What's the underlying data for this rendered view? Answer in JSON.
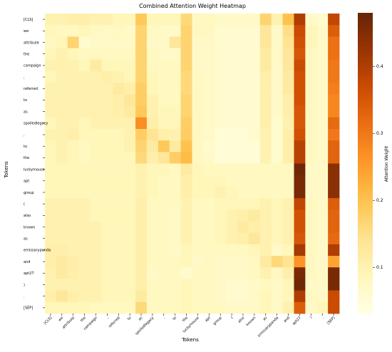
{
  "chart_data": {
    "type": "heatmap",
    "title": "Combined Attention Weight Heatmap",
    "xlabel": "Tokens",
    "ylabel": "Tokens",
    "colorbar_label": "Attention Weight",
    "colormap": "YlOrBr",
    "vmin": 0.03,
    "vmax": 0.48,
    "colorbar_ticks": [
      0.1,
      0.2,
      0.3,
      0.4
    ],
    "colorbar_tick_labels": [
      "0.1",
      "0.2",
      "0.3",
      "0.4"
    ],
    "tokens": [
      "[CLS]",
      "we",
      "attribute",
      "the",
      "campaign",
      ",",
      "referred",
      "to",
      "as",
      "spoiledlegacy",
      ",",
      "to",
      "the",
      "luckymouse",
      "apt",
      "group",
      "(",
      "also",
      "known",
      "as",
      "emissarypanda",
      "and",
      "apt27",
      ")",
      ".",
      "[SEP]"
    ],
    "values": [
      [
        0.1,
        0.1,
        0.11,
        0.11,
        0.1,
        0.1,
        0.09,
        0.09,
        0.19,
        0.09,
        0.09,
        0.09,
        0.16,
        0.08,
        0.08,
        0.07,
        0.07,
        0.07,
        0.07,
        0.17,
        0.1,
        0.2,
        0.4,
        0.07,
        0.06,
        0.38
      ],
      [
        0.09,
        0.08,
        0.08,
        0.09,
        0.08,
        0.07,
        0.08,
        0.07,
        0.17,
        0.08,
        0.07,
        0.07,
        0.17,
        0.08,
        0.08,
        0.06,
        0.06,
        0.06,
        0.06,
        0.13,
        0.07,
        0.15,
        0.37,
        0.09,
        0.07,
        0.34
      ],
      [
        0.08,
        0.09,
        0.17,
        0.06,
        0.07,
        0.07,
        0.07,
        0.07,
        0.17,
        0.07,
        0.07,
        0.13,
        0.17,
        0.07,
        0.07,
        0.06,
        0.06,
        0.06,
        0.06,
        0.13,
        0.07,
        0.14,
        0.36,
        0.09,
        0.07,
        0.31
      ],
      [
        0.09,
        0.1,
        0.09,
        0.08,
        0.08,
        0.08,
        0.08,
        0.08,
        0.17,
        0.08,
        0.07,
        0.07,
        0.17,
        0.07,
        0.07,
        0.06,
        0.06,
        0.06,
        0.06,
        0.12,
        0.07,
        0.13,
        0.35,
        0.08,
        0.07,
        0.31
      ],
      [
        0.1,
        0.1,
        0.1,
        0.09,
        0.12,
        0.09,
        0.09,
        0.09,
        0.17,
        0.08,
        0.08,
        0.08,
        0.17,
        0.07,
        0.07,
        0.06,
        0.06,
        0.06,
        0.06,
        0.12,
        0.07,
        0.13,
        0.37,
        0.08,
        0.07,
        0.3
      ],
      [
        0.09,
        0.1,
        0.1,
        0.1,
        0.1,
        0.11,
        0.1,
        0.09,
        0.17,
        0.09,
        0.08,
        0.08,
        0.16,
        0.08,
        0.07,
        0.06,
        0.06,
        0.06,
        0.06,
        0.11,
        0.07,
        0.12,
        0.36,
        0.08,
        0.07,
        0.3
      ],
      [
        0.1,
        0.1,
        0.1,
        0.1,
        0.1,
        0.1,
        0.12,
        0.11,
        0.18,
        0.09,
        0.08,
        0.08,
        0.16,
        0.08,
        0.07,
        0.06,
        0.06,
        0.06,
        0.06,
        0.11,
        0.07,
        0.12,
        0.36,
        0.08,
        0.07,
        0.29
      ],
      [
        0.1,
        0.1,
        0.1,
        0.1,
        0.1,
        0.1,
        0.11,
        0.13,
        0.18,
        0.1,
        0.08,
        0.08,
        0.17,
        0.08,
        0.07,
        0.06,
        0.06,
        0.06,
        0.06,
        0.11,
        0.07,
        0.11,
        0.36,
        0.08,
        0.07,
        0.28
      ],
      [
        0.1,
        0.1,
        0.1,
        0.1,
        0.1,
        0.1,
        0.11,
        0.12,
        0.19,
        0.1,
        0.09,
        0.09,
        0.17,
        0.08,
        0.07,
        0.06,
        0.06,
        0.06,
        0.06,
        0.11,
        0.07,
        0.11,
        0.35,
        0.08,
        0.07,
        0.28
      ],
      [
        0.09,
        0.1,
        0.1,
        0.09,
        0.1,
        0.1,
        0.1,
        0.1,
        0.27,
        0.11,
        0.09,
        0.09,
        0.18,
        0.08,
        0.07,
        0.06,
        0.06,
        0.06,
        0.06,
        0.11,
        0.06,
        0.1,
        0.35,
        0.08,
        0.07,
        0.32
      ],
      [
        0.1,
        0.1,
        0.11,
        0.09,
        0.09,
        0.09,
        0.09,
        0.1,
        0.18,
        0.14,
        0.11,
        0.1,
        0.18,
        0.08,
        0.07,
        0.05,
        0.05,
        0.05,
        0.06,
        0.1,
        0.06,
        0.11,
        0.36,
        0.08,
        0.07,
        0.3
      ],
      [
        0.09,
        0.1,
        0.09,
        0.08,
        0.09,
        0.09,
        0.09,
        0.1,
        0.17,
        0.12,
        0.19,
        0.12,
        0.2,
        0.08,
        0.06,
        0.05,
        0.05,
        0.05,
        0.05,
        0.1,
        0.06,
        0.11,
        0.39,
        0.08,
        0.07,
        0.33
      ],
      [
        0.09,
        0.1,
        0.09,
        0.08,
        0.09,
        0.09,
        0.09,
        0.09,
        0.16,
        0.11,
        0.13,
        0.18,
        0.21,
        0.08,
        0.07,
        0.05,
        0.05,
        0.05,
        0.05,
        0.1,
        0.06,
        0.11,
        0.39,
        0.08,
        0.07,
        0.33
      ],
      [
        0.09,
        0.09,
        0.09,
        0.09,
        0.09,
        0.09,
        0.09,
        0.09,
        0.1,
        0.09,
        0.09,
        0.08,
        0.12,
        0.09,
        0.08,
        0.08,
        0.08,
        0.08,
        0.08,
        0.08,
        0.08,
        0.08,
        0.47,
        0.07,
        0.07,
        0.44
      ],
      [
        0.09,
        0.09,
        0.09,
        0.09,
        0.09,
        0.09,
        0.09,
        0.09,
        0.1,
        0.09,
        0.08,
        0.08,
        0.11,
        0.09,
        0.09,
        0.09,
        0.08,
        0.08,
        0.08,
        0.08,
        0.08,
        0.08,
        0.46,
        0.07,
        0.07,
        0.44
      ],
      [
        0.09,
        0.09,
        0.09,
        0.09,
        0.09,
        0.09,
        0.09,
        0.09,
        0.1,
        0.09,
        0.08,
        0.08,
        0.11,
        0.09,
        0.09,
        0.1,
        0.09,
        0.08,
        0.08,
        0.08,
        0.08,
        0.08,
        0.46,
        0.07,
        0.07,
        0.44
      ],
      [
        0.1,
        0.1,
        0.1,
        0.1,
        0.09,
        0.09,
        0.09,
        0.09,
        0.11,
        0.08,
        0.08,
        0.08,
        0.1,
        0.08,
        0.08,
        0.09,
        0.09,
        0.09,
        0.09,
        0.1,
        0.09,
        0.1,
        0.38,
        0.08,
        0.07,
        0.34
      ],
      [
        0.1,
        0.1,
        0.1,
        0.1,
        0.09,
        0.09,
        0.09,
        0.09,
        0.11,
        0.08,
        0.08,
        0.07,
        0.1,
        0.08,
        0.08,
        0.09,
        0.1,
        0.11,
        0.12,
        0.1,
        0.09,
        0.1,
        0.36,
        0.08,
        0.07,
        0.33
      ],
      [
        0.1,
        0.1,
        0.1,
        0.1,
        0.1,
        0.09,
        0.09,
        0.09,
        0.11,
        0.08,
        0.08,
        0.07,
        0.1,
        0.08,
        0.08,
        0.09,
        0.1,
        0.12,
        0.11,
        0.1,
        0.09,
        0.1,
        0.36,
        0.08,
        0.07,
        0.33
      ],
      [
        0.1,
        0.1,
        0.1,
        0.1,
        0.1,
        0.09,
        0.09,
        0.09,
        0.11,
        0.08,
        0.08,
        0.07,
        0.1,
        0.08,
        0.08,
        0.09,
        0.1,
        0.11,
        0.13,
        0.1,
        0.09,
        0.1,
        0.35,
        0.08,
        0.07,
        0.32
      ],
      [
        0.11,
        0.11,
        0.1,
        0.1,
        0.1,
        0.09,
        0.09,
        0.09,
        0.11,
        0.08,
        0.08,
        0.07,
        0.09,
        0.08,
        0.08,
        0.08,
        0.08,
        0.08,
        0.09,
        0.1,
        0.07,
        0.09,
        0.41,
        0.08,
        0.07,
        0.4
      ],
      [
        0.11,
        0.12,
        0.11,
        0.1,
        0.1,
        0.09,
        0.09,
        0.09,
        0.11,
        0.08,
        0.08,
        0.08,
        0.09,
        0.07,
        0.08,
        0.07,
        0.07,
        0.07,
        0.08,
        0.12,
        0.16,
        0.14,
        0.26,
        0.08,
        0.07,
        0.24
      ],
      [
        0.1,
        0.12,
        0.11,
        0.1,
        0.1,
        0.09,
        0.09,
        0.09,
        0.11,
        0.07,
        0.08,
        0.08,
        0.06,
        0.08,
        0.08,
        0.07,
        0.07,
        0.07,
        0.08,
        0.1,
        0.08,
        0.11,
        0.46,
        0.08,
        0.07,
        0.46
      ],
      [
        0.1,
        0.1,
        0.1,
        0.1,
        0.1,
        0.09,
        0.09,
        0.09,
        0.11,
        0.08,
        0.08,
        0.08,
        0.09,
        0.08,
        0.08,
        0.07,
        0.06,
        0.06,
        0.07,
        0.08,
        0.07,
        0.09,
        0.47,
        0.07,
        0.07,
        0.46
      ],
      [
        0.11,
        0.13,
        0.11,
        0.1,
        0.1,
        0.09,
        0.09,
        0.09,
        0.12,
        0.08,
        0.08,
        0.08,
        0.09,
        0.08,
        0.08,
        0.07,
        0.06,
        0.06,
        0.07,
        0.09,
        0.07,
        0.09,
        0.4,
        0.08,
        0.07,
        0.37
      ],
      [
        0.09,
        0.09,
        0.09,
        0.09,
        0.08,
        0.08,
        0.08,
        0.08,
        0.16,
        0.08,
        0.08,
        0.08,
        0.09,
        0.08,
        0.08,
        0.08,
        0.07,
        0.07,
        0.07,
        0.09,
        0.07,
        0.1,
        0.34,
        0.07,
        0.09,
        0.37
      ]
    ]
  }
}
